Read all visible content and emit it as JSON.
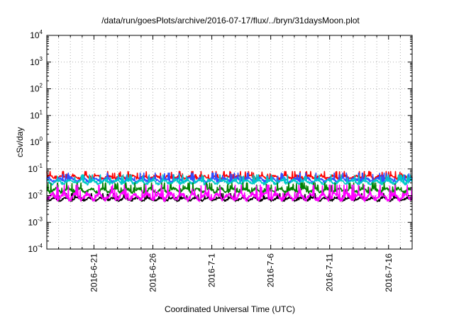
{
  "chart_data": {
    "type": "line",
    "title": "/data/run/goesPlots/archive/2016-07-17/flux/../bryn/31daysMoon.plot",
    "xlabel": "Coordinated Universal Time (UTC)",
    "ylabel": "cSv/day",
    "yscale": "log",
    "ylim": [
      0.0001,
      10000
    ],
    "xlim": [
      "2016-06-17",
      "2016-07-18"
    ],
    "grid": true,
    "y_ticks": [
      {
        "base": "10",
        "exp": "-4"
      },
      {
        "base": "10",
        "exp": "-3"
      },
      {
        "base": "10",
        "exp": "-2"
      },
      {
        "base": "10",
        "exp": "-1"
      },
      {
        "base": "10",
        "exp": "0"
      },
      {
        "base": "10",
        "exp": "1"
      },
      {
        "base": "10",
        "exp": "2"
      },
      {
        "base": "10",
        "exp": "3"
      },
      {
        "base": "10",
        "exp": "4"
      }
    ],
    "x_ticks": [
      "2016-6-21",
      "2016-6-26",
      "2016-7-1",
      "2016-7-6",
      "2016-7-11",
      "2016-7-16"
    ],
    "series": [
      {
        "color": "#ff0000",
        "baseline": 0.04,
        "peak": 0.08
      },
      {
        "color": "#2f4fff",
        "baseline": 0.03,
        "peak": 0.07
      },
      {
        "color": "#00c8c8",
        "baseline": 0.025,
        "peak": 0.06
      },
      {
        "color": "#008000",
        "baseline": 0.012,
        "peak": 0.03
      },
      {
        "color": "#000000",
        "baseline": 0.006,
        "peak": 0.012
      },
      {
        "color": "#ff00ff",
        "baseline": 0.006,
        "peak": 0.025
      }
    ]
  }
}
